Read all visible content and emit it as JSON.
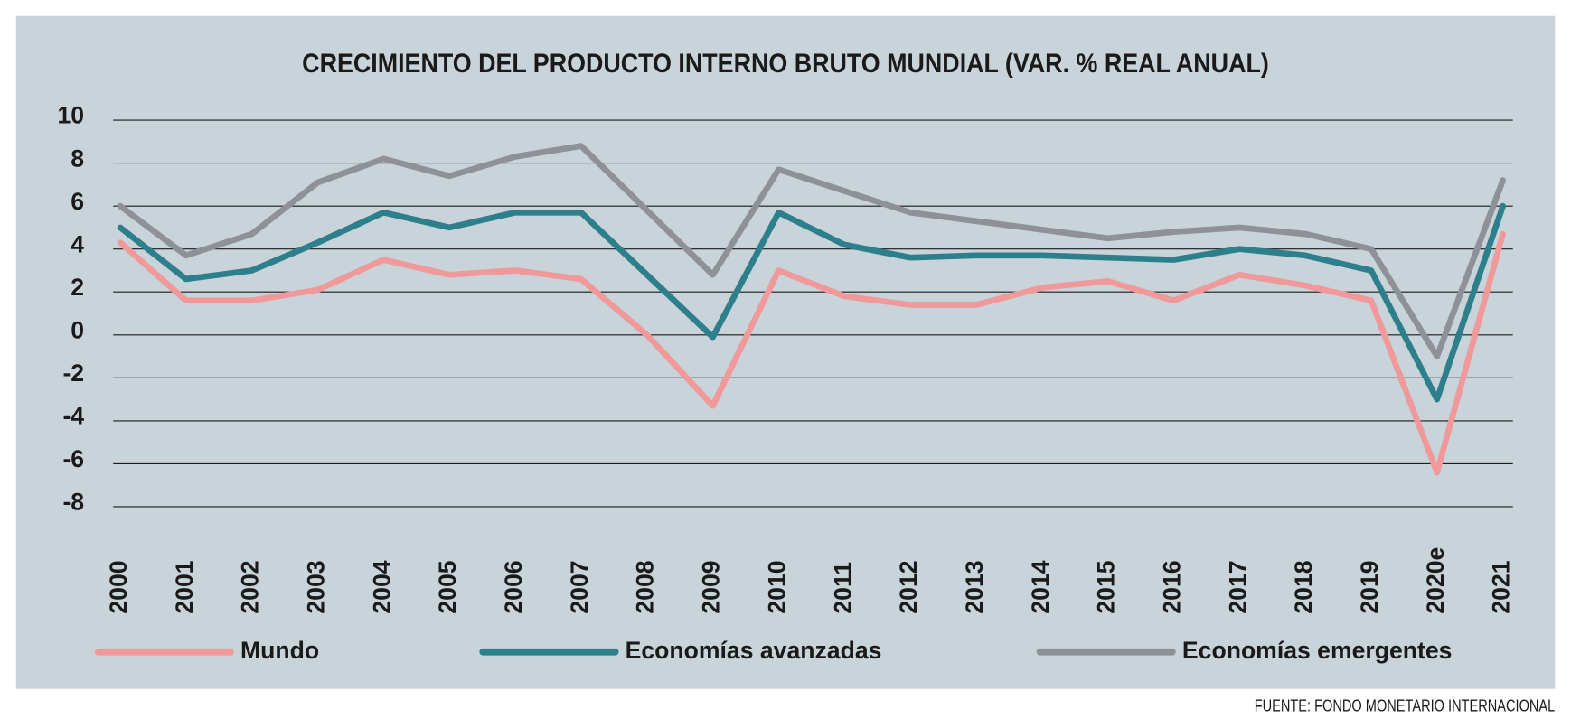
{
  "chart_data": {
    "type": "line",
    "title": "CRECIMIENTO DEL PRODUCTO INTERNO BRUTO MUNDIAL (VAR. % REAL ANUAL)",
    "categories": [
      "2000",
      "2001",
      "2002",
      "2003",
      "2004",
      "2005",
      "2006",
      "2007",
      "2008",
      "2009",
      "2010",
      "2011",
      "2012",
      "2013",
      "2014",
      "2015",
      "2016",
      "2017",
      "2018",
      "2019",
      "2020e",
      "2021"
    ],
    "series": [
      {
        "name": "Mundo",
        "color": "#f0999a",
        "values": [
          4.3,
          1.6,
          1.6,
          2.1,
          3.5,
          2.8,
          3.0,
          2.6,
          0.0,
          -3.3,
          3.0,
          1.8,
          1.4,
          1.4,
          2.2,
          2.5,
          1.6,
          2.8,
          2.3,
          1.6,
          -6.4,
          4.7
        ]
      },
      {
        "name": "Economías avanzadas",
        "color": "#2e7f8c",
        "values": [
          5.0,
          2.6,
          3.0,
          4.3,
          5.7,
          5.0,
          5.7,
          5.7,
          2.8,
          -0.1,
          5.7,
          4.2,
          3.6,
          3.7,
          3.7,
          3.6,
          3.5,
          4.0,
          3.7,
          3.0,
          -3.0,
          6.0
        ]
      },
      {
        "name": "Economías emergentes",
        "color": "#8e9296",
        "values": [
          6.0,
          3.7,
          4.7,
          7.1,
          8.2,
          7.4,
          8.3,
          8.8,
          5.8,
          2.8,
          7.7,
          6.7,
          5.7,
          5.3,
          4.9,
          4.5,
          4.8,
          5.0,
          4.7,
          4.0,
          -1.0,
          7.2
        ]
      }
    ],
    "ylim": [
      -8,
      10
    ],
    "yticks": [
      -8,
      -6,
      -4,
      -2,
      0,
      2,
      4,
      6,
      8,
      10
    ],
    "grid": true,
    "legend": "bottom",
    "source": "FUENTE: FONDO MONETARIO INTERNACIONAL"
  }
}
